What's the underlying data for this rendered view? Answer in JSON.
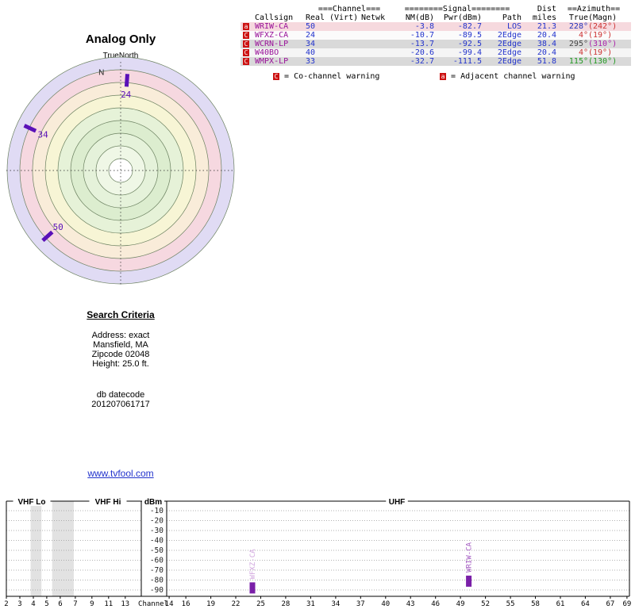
{
  "chart_data": [
    {
      "type": "radar",
      "title": "Analog Only",
      "orientation_label": "TrueNorth",
      "north_label": "N",
      "ring_stroke": "#6b8160",
      "marker_color": "#5a10b8",
      "zones": [
        {
          "r": 143,
          "fill": "#e0dbf4"
        },
        {
          "r": 127,
          "fill": "#f6d8e0"
        },
        {
          "r": 111,
          "fill": "#f9ecd9"
        },
        {
          "r": 95,
          "fill": "#f7f5d5"
        },
        {
          "r": 79,
          "fill": "#e6f2d8"
        },
        {
          "r": 63,
          "fill": "#dcedcf"
        },
        {
          "r": 47,
          "fill": "#e5f2da"
        },
        {
          "r": 31,
          "fill": "#eff7e6"
        },
        {
          "r": 15,
          "fill": "#ffffff"
        }
      ],
      "markers": [
        {
          "label": "24",
          "azimuth_true_deg": 4,
          "radius": 114
        },
        {
          "label": "34",
          "azimuth_true_deg": 295,
          "radius": 126
        },
        {
          "label": "50",
          "azimuth_true_deg": 228,
          "radius": 124
        }
      ]
    },
    {
      "type": "bar",
      "ylabel": "dBm",
      "xlabel": "Channel",
      "ylim": [
        -95,
        -5
      ],
      "yticks": [
        -10,
        -20,
        -30,
        -40,
        -50,
        -60,
        -70,
        -80,
        -90
      ],
      "panels": [
        {
          "label": "VHF Lo",
          "ticks": [
            2,
            3,
            4,
            5,
            6
          ]
        },
        {
          "label": "VHF Hi",
          "ticks": [
            7,
            9,
            11,
            13
          ]
        },
        {
          "label": "UHF",
          "ticks": [
            14,
            16,
            19,
            22,
            25,
            28,
            31,
            34,
            37,
            40,
            43,
            46,
            49,
            52,
            55,
            58,
            61,
            64,
            67,
            69
          ]
        }
      ],
      "bars": [
        {
          "callsign": "WFXZ-CA",
          "channel": 24,
          "pwr_dbm": -89.5,
          "bar_color": "#7a1fa8",
          "label_color": "#d2a8df"
        },
        {
          "callsign": "WRIW-CA",
          "channel": 50,
          "pwr_dbm": -82.7,
          "bar_color": "#7a1fa8",
          "label_color": "#a259c0"
        }
      ],
      "shaded_bands": [
        {
          "panel": 0,
          "ch_from": 3.8,
          "ch_to": 4.6
        },
        {
          "panel": 0,
          "ch_from": 5.4,
          "ch_to": 7.0
        }
      ],
      "band_fill": "#e2e2e2",
      "grid": true
    }
  ],
  "table": {
    "group_headers": {
      "channel": "===Channel===",
      "signal": "========Signal========",
      "dist": "Dist",
      "azimuth": "==Azimuth=="
    },
    "col_headers": {
      "callsign": "Callsign",
      "real": "Real",
      "virt": "(Virt)",
      "netwk": "Netwk",
      "nm": "NM(dB)",
      "pwr": "Pwr(dBm)",
      "path": "Path",
      "miles": "miles",
      "true": "True",
      "magn": "(Magn)"
    },
    "rows": [
      {
        "warn": "a",
        "callsign": "WRIW-CA",
        "real": "50",
        "virt": "",
        "netwk": "",
        "nm": "-3.8",
        "pwr": "-82.7",
        "path": "LOS",
        "miles": "21.3",
        "true": "228°",
        "magn": "(242°)",
        "bg": "#f6d9de",
        "true_color": "#2233bb",
        "magn_color": "#cc3333"
      },
      {
        "warn": "C",
        "callsign": "WFXZ-CA",
        "real": "24",
        "virt": "",
        "netwk": "",
        "nm": "-10.7",
        "pwr": "-89.5",
        "path": "2Edge",
        "miles": "20.4",
        "true": "4°",
        "magn": "(19°)",
        "bg": "#fbfbfb",
        "true_color": "#cc3333",
        "magn_color": "#cc3333"
      },
      {
        "warn": "C",
        "callsign": "WCRN-LP",
        "real": "34",
        "virt": "",
        "netwk": "",
        "nm": "-13.7",
        "pwr": "-92.5",
        "path": "2Edge",
        "miles": "38.4",
        "true": "295°",
        "magn": "(310°)",
        "bg": "#d9d9d9",
        "true_color": "#444444",
        "magn_color": "#aa22aa"
      },
      {
        "warn": "C",
        "callsign": "W40BO",
        "real": "40",
        "virt": "",
        "netwk": "",
        "nm": "-20.6",
        "pwr": "-99.4",
        "path": "2Edge",
        "miles": "20.4",
        "true": "4°",
        "magn": "(19°)",
        "bg": "#f5f5f5",
        "true_color": "#cc3333",
        "magn_color": "#cc3333"
      },
      {
        "warn": "C",
        "callsign": "WMPX-LP",
        "real": "33",
        "virt": "",
        "netwk": "",
        "nm": "-32.7",
        "pwr": "-111.5",
        "path": "2Edge",
        "miles": "51.8",
        "true": "115°",
        "magn": "(130°)",
        "bg": "#d9d9d9",
        "true_color": "#229922",
        "magn_color": "#229922"
      }
    ],
    "legend": {
      "co": {
        "badge": "C",
        "text": "= Co-channel warning"
      },
      "adj": {
        "badge": "a",
        "text": "= Adjacent channel warning"
      }
    }
  },
  "search_criteria": {
    "heading": "Search Criteria",
    "lines": [
      "Address: exact",
      "Mansfield, MA",
      "Zipcode 02048",
      "Height: 25.0 ft."
    ],
    "footer_lines": [
      "db datecode",
      "201207061717"
    ]
  },
  "link_label": "www.tvfool.com"
}
